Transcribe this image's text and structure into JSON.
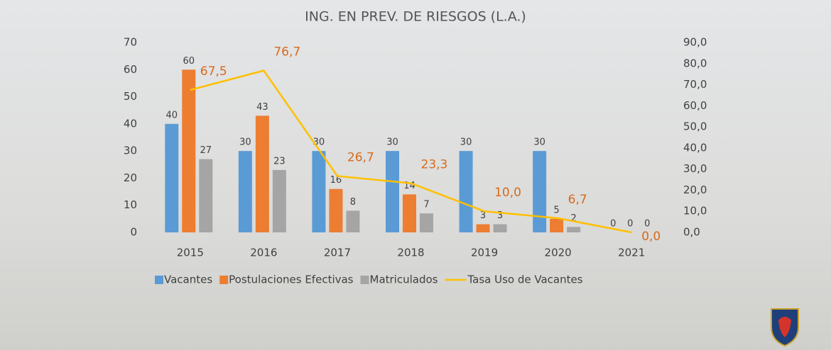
{
  "chart_data": {
    "type": "bar",
    "title": "ING. EN PREV. DE RIESGOS (L.A.)",
    "categories": [
      "2015",
      "2016",
      "2017",
      "2018",
      "2019",
      "2020",
      "2021"
    ],
    "series": [
      {
        "name": "Vacantes",
        "color": "#5B9BD5",
        "values": [
          40,
          30,
          30,
          30,
          30,
          30,
          0
        ]
      },
      {
        "name": "Postulaciones Efectivas",
        "color": "#ED7D31",
        "values": [
          60,
          43,
          16,
          14,
          3,
          5,
          0
        ]
      },
      {
        "name": "Matriculados",
        "color": "#A5A5A5",
        "values": [
          27,
          23,
          8,
          7,
          3,
          2,
          0
        ]
      },
      {
        "name": "Tasa Uso de Vacantes",
        "color": "#FFC000",
        "type": "line",
        "axis": "y2",
        "values": [
          67.5,
          76.7,
          26.7,
          23.3,
          10.0,
          6.7,
          0.0
        ],
        "value_labels": [
          "67,5",
          "76,7",
          "26,7",
          "23,3",
          "10,0",
          "6,7",
          "0,0"
        ]
      }
    ],
    "ylim": [
      0,
      70
    ],
    "yticks": [
      0,
      10,
      20,
      30,
      40,
      50,
      60,
      70
    ],
    "y2lim": [
      0,
      90
    ],
    "y2ticks": [
      {
        "value": 0,
        "label": "0,0"
      },
      {
        "value": 10,
        "label": "10,0"
      },
      {
        "value": 20,
        "label": "20,0"
      },
      {
        "value": 30,
        "label": "30,0"
      },
      {
        "value": 40,
        "label": "40,0"
      },
      {
        "value": 50,
        "label": "50,0"
      },
      {
        "value": 60,
        "label": "60,0"
      },
      {
        "value": 70,
        "label": "70,0"
      },
      {
        "value": 80,
        "label": "80,0"
      },
      {
        "value": 90,
        "label": "90,0"
      }
    ],
    "legend": "bottom",
    "grid": false
  }
}
